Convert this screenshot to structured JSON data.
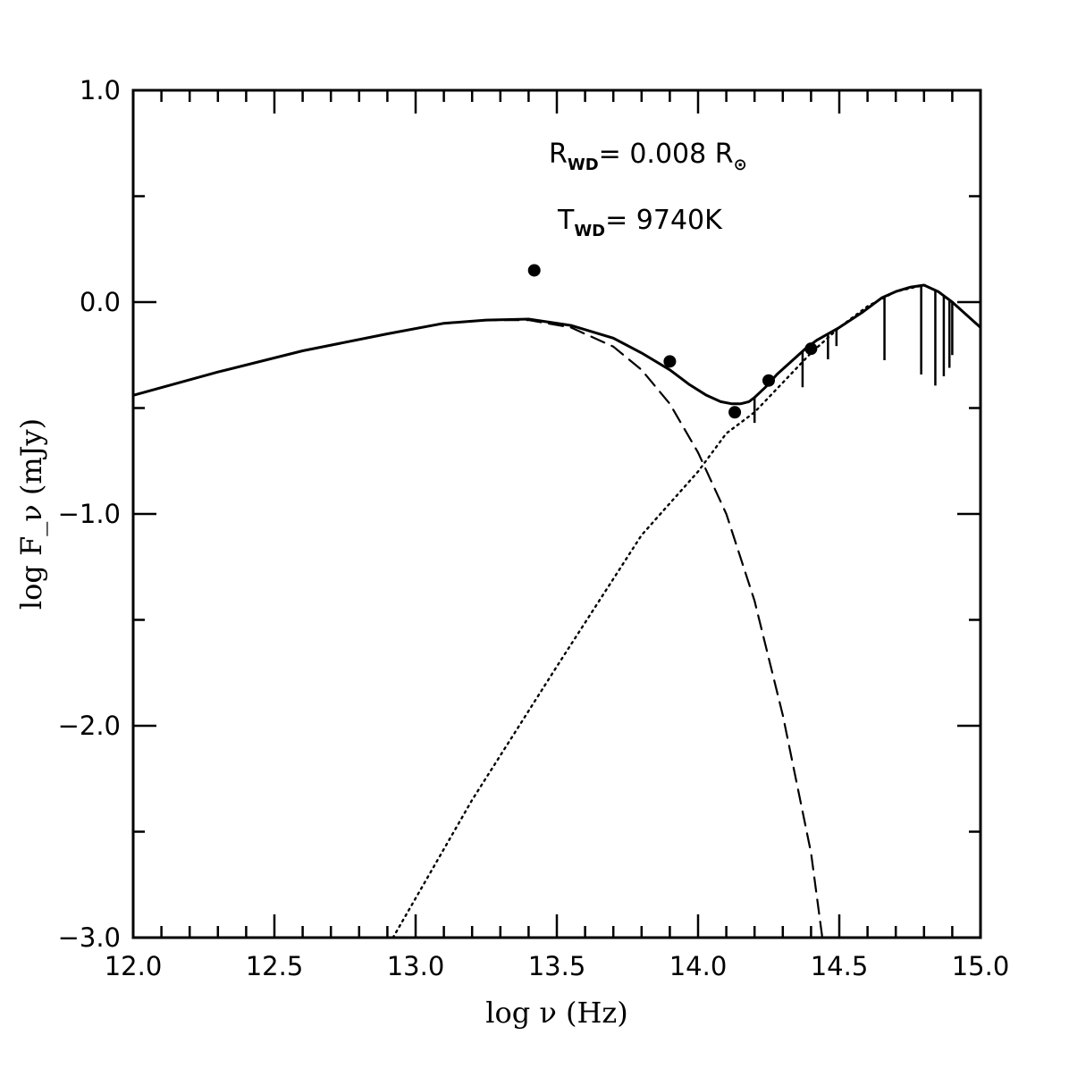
{
  "chart_data": {
    "type": "line",
    "xlabel": "log ν (Hz)",
    "ylabel": "log F_ν (mJy)",
    "xlim": [
      12.0,
      15.0
    ],
    "ylim": [
      -3.0,
      1.0
    ],
    "x_ticks": [
      12.0,
      12.5,
      13.0,
      13.5,
      14.0,
      14.5,
      15.0
    ],
    "x_tick_labels": [
      "12.0",
      "12.5",
      "13.0",
      "13.5",
      "14.0",
      "14.5",
      "15.0"
    ],
    "y_ticks": [
      1.0,
      0.0,
      -1.0,
      -2.0,
      -3.0
    ],
    "y_tick_labels": [
      "1.0",
      "0.0",
      "−1.0",
      "−2.0",
      "−3.0"
    ],
    "x_minor_step": 0.1,
    "y_minor_step": 0.5,
    "grid": false,
    "annotations": [
      {
        "main": "R",
        "sub": "WD",
        "text": "= 0.008 R",
        "symbol": "⊙"
      },
      {
        "main": "T",
        "sub": "WD",
        "text": "= 9740K"
      }
    ],
    "series": [
      {
        "style": "solid",
        "x": [
          12.0,
          12.3,
          12.6,
          12.9,
          13.1,
          13.25,
          13.4,
          13.55,
          13.7,
          13.8,
          13.9,
          13.97,
          14.03,
          14.08,
          14.12,
          14.15,
          14.18,
          14.2,
          14.24,
          14.28,
          14.33,
          14.38,
          14.42,
          14.5,
          14.58,
          14.65,
          14.7,
          14.75,
          14.8,
          14.85,
          14.9,
          15.0
        ],
        "y": [
          -0.44,
          -0.33,
          -0.23,
          -0.15,
          -0.1,
          -0.085,
          -0.08,
          -0.11,
          -0.17,
          -0.24,
          -0.32,
          -0.39,
          -0.44,
          -0.47,
          -0.48,
          -0.48,
          -0.47,
          -0.45,
          -0.4,
          -0.34,
          -0.28,
          -0.22,
          -0.18,
          -0.12,
          -0.05,
          0.02,
          0.05,
          0.07,
          0.08,
          0.05,
          0.0,
          -0.12
        ]
      },
      {
        "style": "dashed",
        "x": [
          12.0,
          12.3,
          12.6,
          12.9,
          13.1,
          13.25,
          13.4,
          13.55,
          13.7,
          13.8,
          13.9,
          14.0,
          14.1,
          14.2,
          14.3,
          14.4,
          14.44
        ],
        "y": [
          -0.44,
          -0.33,
          -0.23,
          -0.15,
          -0.1,
          -0.085,
          -0.085,
          -0.12,
          -0.21,
          -0.32,
          -0.48,
          -0.71,
          -1.0,
          -1.41,
          -1.95,
          -2.6,
          -3.0
        ]
      },
      {
        "style": "dotted",
        "x": [
          12.92,
          13.2,
          13.5,
          13.8,
          14.0,
          14.1,
          14.2,
          14.3,
          14.4,
          14.5,
          14.6,
          14.7,
          14.8,
          14.85,
          14.9,
          15.0
        ],
        "y": [
          -3.0,
          -2.35,
          -1.72,
          -1.1,
          -0.8,
          -0.62,
          -0.52,
          -0.38,
          -0.24,
          -0.12,
          -0.02,
          0.05,
          0.08,
          0.05,
          0.0,
          -0.12
        ]
      }
    ],
    "absorption_lines": [
      {
        "x": 14.2,
        "depth": 0.12
      },
      {
        "x": 14.37,
        "depth": 0.17
      },
      {
        "x": 14.46,
        "depth": 0.12
      },
      {
        "x": 14.49,
        "depth": 0.08
      },
      {
        "x": 14.66,
        "depth": 0.3
      },
      {
        "x": 14.79,
        "depth": 0.42
      },
      {
        "x": 14.84,
        "depth": 0.45
      },
      {
        "x": 14.87,
        "depth": 0.38
      },
      {
        "x": 14.89,
        "depth": 0.32
      },
      {
        "x": 14.9,
        "depth": 0.25
      }
    ],
    "points": [
      {
        "x": 13.42,
        "y": 0.15
      },
      {
        "x": 13.9,
        "y": -0.28
      },
      {
        "x": 14.13,
        "y": -0.52
      },
      {
        "x": 14.25,
        "y": -0.37
      },
      {
        "x": 14.4,
        "y": -0.22
      }
    ]
  }
}
